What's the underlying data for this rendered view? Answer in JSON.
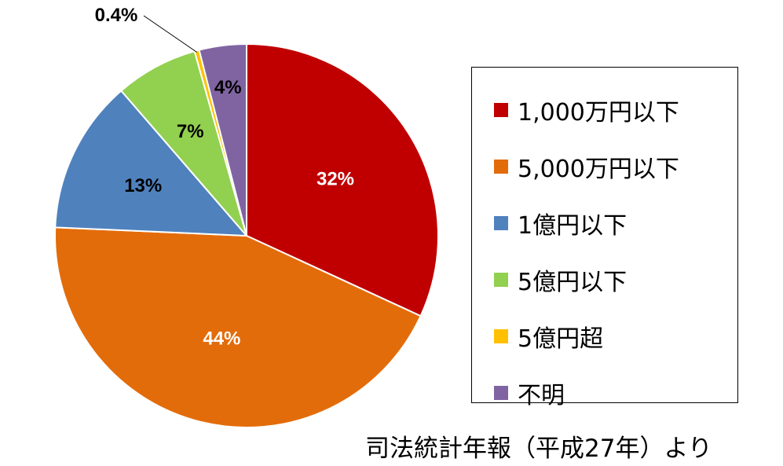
{
  "chart_data": {
    "type": "pie",
    "categories": [
      "1,000万円以下",
      "5,000万円以下",
      "1億円以下",
      "5億円以下",
      "5億円超",
      "不明"
    ],
    "values": [
      32,
      44,
      13,
      7,
      0.4,
      4
    ],
    "labels": [
      "32%",
      "44%",
      "13%",
      "7%",
      "0.4%",
      "4%"
    ],
    "colors": [
      "#C00000",
      "#E36C0A",
      "#4F81BD",
      "#92D050",
      "#FFC000",
      "#8064A2"
    ],
    "label_colors": [
      "#ffffff",
      "#ffffff",
      "#000000",
      "#000000",
      "#000000",
      "#000000"
    ],
    "legend_position": "right"
  },
  "legend": {
    "items": [
      {
        "label": "1,000万円以下",
        "color": "#C00000"
      },
      {
        "label": "5,000万円以下",
        "color": "#E36C0A"
      },
      {
        "label": "1億円以下",
        "color": "#4F81BD"
      },
      {
        "label": "5億円以下",
        "color": "#92D050"
      },
      {
        "label": "5億円超",
        "color": "#FFC000"
      },
      {
        "label": "不明",
        "color": "#8064A2"
      }
    ]
  },
  "source_note": "司法統計年報（平成27年）より"
}
